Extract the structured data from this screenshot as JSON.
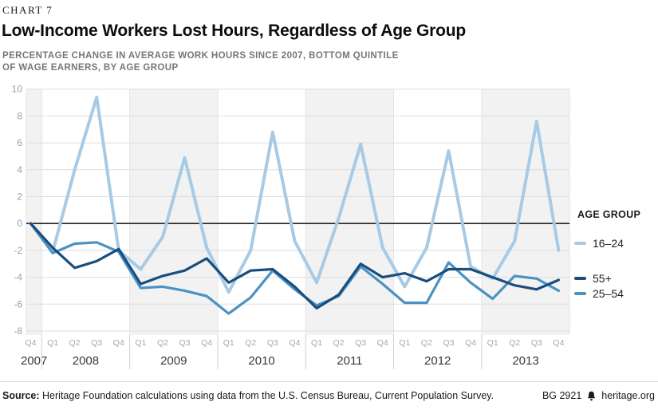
{
  "header": {
    "kicker": "CHART 7",
    "title": "Low-Income Workers Lost Hours, Regardless of Age Group",
    "subtitle_line1": "PERCENTAGE CHANGE IN AVERAGE WORK HOURS SINCE 2007, BOTTOM QUINTILE",
    "subtitle_line2": "OF WAGE EARNERS, BY AGE GROUP"
  },
  "legend": {
    "title": "AGE GROUP"
  },
  "footer": {
    "source_label": "Source:",
    "source_text": " Heritage Foundation calculations using data from the U.S. Census Bureau, Current Population Survey.",
    "doc_id": "BG 2921",
    "site": "heritage.org"
  },
  "chart_data": {
    "type": "line",
    "title": "Low-Income Workers Lost Hours, Regardless of Age Group",
    "ylabel": "Percentage change in average work hours since 2007",
    "ylim": [
      -8,
      10
    ],
    "ytick_step": 2,
    "grid": true,
    "zero_line": true,
    "band_color": "#f2f2f2",
    "x_quarters": [
      "Q4",
      "Q1",
      "Q2",
      "Q3",
      "Q4",
      "Q1",
      "Q2",
      "Q3",
      "Q4",
      "Q1",
      "Q2",
      "Q3",
      "Q4",
      "Q1",
      "Q2",
      "Q3",
      "Q4",
      "Q1",
      "Q2",
      "Q3",
      "Q4",
      "Q1",
      "Q2",
      "Q3",
      "Q4"
    ],
    "x_years": [
      {
        "label": "2007",
        "quarters": 1
      },
      {
        "label": "2008",
        "quarters": 4
      },
      {
        "label": "2009",
        "quarters": 4
      },
      {
        "label": "2010",
        "quarters": 4
      },
      {
        "label": "2011",
        "quarters": 4
      },
      {
        "label": "2012",
        "quarters": 4
      },
      {
        "label": "2013",
        "quarters": 4
      }
    ],
    "series": [
      {
        "name": "16–24",
        "color": "#a7cbe6",
        "values": [
          0,
          -2.1,
          4.0,
          9.4,
          -2.0,
          -3.4,
          -1.0,
          4.9,
          -1.8,
          -5.1,
          -2.0,
          6.8,
          -1.3,
          -4.4,
          0.4,
          5.9,
          -1.8,
          -4.7,
          -1.8,
          5.4,
          -3.2,
          -4.1,
          -1.3,
          7.6,
          -2.0
        ]
      },
      {
        "name": "55+",
        "color": "#194d7d",
        "values": [
          0,
          -1.8,
          -3.3,
          -2.8,
          -1.9,
          -4.5,
          -3.9,
          -3.5,
          -2.6,
          -4.4,
          -3.5,
          -3.4,
          -4.7,
          -6.3,
          -5.3,
          -3.0,
          -4.0,
          -3.7,
          -4.3,
          -3.4,
          -3.4,
          -4.0,
          -4.6,
          -4.9,
          -4.2
        ]
      },
      {
        "name": "25–54",
        "color": "#4b92c3",
        "values": [
          0,
          -2.2,
          -1.5,
          -1.4,
          -2.1,
          -4.8,
          -4.7,
          -5.0,
          -5.4,
          -6.7,
          -5.5,
          -3.5,
          -4.9,
          -6.1,
          -5.4,
          -3.2,
          -4.5,
          -5.9,
          -5.9,
          -2.9,
          -4.4,
          -5.6,
          -3.9,
          -4.1,
          -5.0
        ]
      }
    ]
  }
}
